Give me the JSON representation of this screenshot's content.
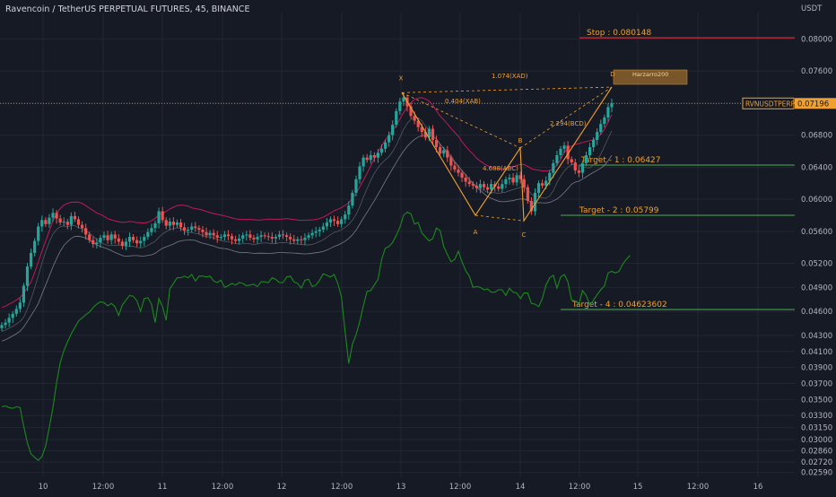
{
  "header": {
    "title": "Ravencoin / TetherUS PERPETUAL FUTURES, 45, BINANCE",
    "currency": "USDT"
  },
  "chart_data": {
    "type": "candlestick",
    "symbol": "RVNUSDTPERP",
    "last_price": "0.07196",
    "ylim": [
      0.0253,
      0.0833
    ],
    "y_ticks": [
      "0.08000",
      "0.07600",
      "0.07200",
      "0.06800",
      "0.06400",
      "0.06000",
      "0.05600",
      "0.05200",
      "0.04900",
      "0.04600",
      "0.04300",
      "0.04100",
      "0.03900",
      "0.03700",
      "0.03500",
      "0.03300",
      "0.03150",
      "0.03000",
      "0.02860",
      "0.02720",
      "0.02590"
    ],
    "x_ticks": [
      "10",
      "12:00",
      "11",
      "12:00",
      "12",
      "12:00",
      "13",
      "12:00",
      "14",
      "12:00",
      "15",
      "12:00",
      "16"
    ],
    "grid": true,
    "levels": [
      {
        "label": "Stop : 0.080148",
        "value": 0.080148,
        "color": "#f23645"
      },
      {
        "label": "Target - 1 : 0.06427",
        "value": 0.06427,
        "color": "#4caf50"
      },
      {
        "label": "Target - 2 : 0.05799",
        "value": 0.05799,
        "color": "#4caf50"
      },
      {
        "label": "Target - 4 : 0.04623602",
        "value": 0.04623602,
        "color": "#4caf50"
      }
    ],
    "harmonic": {
      "points": {
        "X": 0.0733,
        "A": 0.058,
        "B": 0.0664,
        "C": 0.0573,
        "D": 0.074
      },
      "ratios": [
        "1.074(XAD)",
        "0.404(XAB)",
        "4.688(ABC)",
        "2.294(BCD)"
      ],
      "zone_label": "Harzarro200"
    },
    "closes": [
      0.0443,
      0.0446,
      0.0452,
      0.0457,
      0.0463,
      0.0471,
      0.0492,
      0.0516,
      0.0533,
      0.0548,
      0.0566,
      0.0574,
      0.0569,
      0.0577,
      0.0583,
      0.0576,
      0.0571,
      0.0572,
      0.0568,
      0.0579,
      0.0575,
      0.0568,
      0.0564,
      0.0556,
      0.0549,
      0.0544,
      0.0546,
      0.0552,
      0.0555,
      0.0549,
      0.0556,
      0.0551,
      0.0547,
      0.0542,
      0.0547,
      0.0553,
      0.0549,
      0.0545,
      0.0548,
      0.0553,
      0.0559,
      0.0564,
      0.057,
      0.0585,
      0.0574,
      0.0567,
      0.0572,
      0.0568,
      0.0571,
      0.0565,
      0.0561,
      0.0562,
      0.0566,
      0.0564,
      0.0562,
      0.0559,
      0.0555,
      0.0558,
      0.0555,
      0.0552,
      0.0553,
      0.0556,
      0.0554,
      0.055,
      0.0548,
      0.0551,
      0.0555,
      0.0556,
      0.0552,
      0.055,
      0.0553,
      0.0555,
      0.0554,
      0.0553,
      0.0551,
      0.0553,
      0.0556,
      0.0555,
      0.0553,
      0.055,
      0.0548,
      0.055,
      0.0549,
      0.0552,
      0.0555,
      0.0558,
      0.056,
      0.0562,
      0.0566,
      0.0571,
      0.0575,
      0.0573,
      0.0569,
      0.0575,
      0.0581,
      0.0592,
      0.0608,
      0.0625,
      0.0641,
      0.0652,
      0.0649,
      0.0655,
      0.0652,
      0.0658,
      0.0663,
      0.0671,
      0.068,
      0.0693,
      0.071,
      0.0722,
      0.0727,
      0.0716,
      0.0704,
      0.0698,
      0.069,
      0.0684,
      0.0677,
      0.0688,
      0.0674,
      0.0665,
      0.0657,
      0.0661,
      0.0652,
      0.0642,
      0.0637,
      0.0633,
      0.0627,
      0.0622,
      0.0619,
      0.0617,
      0.0614,
      0.0619,
      0.0615,
      0.0612,
      0.0619,
      0.0616,
      0.0613,
      0.0619,
      0.0625,
      0.0627,
      0.0621,
      0.063,
      0.0625,
      0.0615,
      0.0598,
      0.0585,
      0.0608,
      0.062,
      0.0617,
      0.0623,
      0.0633,
      0.0645,
      0.0655,
      0.0663,
      0.0667,
      0.065,
      0.0646,
      0.0636,
      0.0633,
      0.0645,
      0.0655,
      0.0665,
      0.0674,
      0.0684,
      0.0694,
      0.0702,
      0.0715,
      0.072
    ],
    "green_line": [
      0.0341,
      0.0342,
      0.034,
      0.0339,
      0.0341,
      0.034,
      0.0317,
      0.0296,
      0.0282,
      0.0278,
      0.0274,
      0.0279,
      0.0292,
      0.0315,
      0.034,
      0.0371,
      0.0396,
      0.0411,
      0.0422,
      0.0432,
      0.044,
      0.0448,
      0.0452,
      0.0456,
      0.0459,
      0.0465,
      0.0469,
      0.0472,
      0.0471,
      0.0467,
      0.047,
      0.0466,
      0.0455,
      0.0468,
      0.0474,
      0.048,
      0.0479,
      0.0473,
      0.046,
      0.0476,
      0.0477,
      0.0469,
      0.0446,
      0.0476,
      0.0466,
      0.0449,
      0.0488,
      0.0495,
      0.0502,
      0.0502,
      0.0504,
      0.0502,
      0.0506,
      0.0498,
      0.0504,
      0.0504,
      0.0503,
      0.0504,
      0.0498,
      0.0496,
      0.0499,
      0.049,
      0.0492,
      0.0495,
      0.0493,
      0.0496,
      0.0495,
      0.0492,
      0.0493,
      0.0494,
      0.0491,
      0.0497,
      0.0497,
      0.0496,
      0.0502,
      0.05,
      0.0496,
      0.0496,
      0.0503,
      0.0504,
      0.0497,
      0.0495,
      0.0489,
      0.0499,
      0.05,
      0.0491,
      0.0493,
      0.0499,
      0.0507,
      0.0505,
      0.0503,
      0.0506,
      0.0495,
      0.0478,
      0.0434,
      0.0395,
      0.0419,
      0.0431,
      0.0447,
      0.0467,
      0.0485,
      0.0486,
      0.0493,
      0.05,
      0.0525,
      0.0539,
      0.0541,
      0.0546,
      0.0555,
      0.0565,
      0.058,
      0.0584,
      0.0582,
      0.0569,
      0.0571,
      0.0558,
      0.0553,
      0.0548,
      0.0551,
      0.0564,
      0.0561,
      0.0541,
      0.0531,
      0.0522,
      0.0525,
      0.0535,
      0.0522,
      0.0511,
      0.0504,
      0.049,
      0.0491,
      0.049,
      0.0487,
      0.0488,
      0.0484,
      0.0484,
      0.0487,
      0.0487,
      0.048,
      0.0489,
      0.0484,
      0.0483,
      0.0476,
      0.0483,
      0.0483,
      0.047,
      0.0469,
      0.0466,
      0.0476,
      0.0493,
      0.0502,
      0.0505,
      0.0489,
      0.0503,
      0.0506,
      0.0497,
      0.0474,
      0.0473,
      0.0469,
      0.0486,
      0.048,
      0.0468,
      0.0474,
      0.0481,
      0.0487,
      0.0492,
      0.0508,
      0.051,
      0.0508,
      0.051,
      0.0519,
      0.0525,
      0.053
    ]
  }
}
